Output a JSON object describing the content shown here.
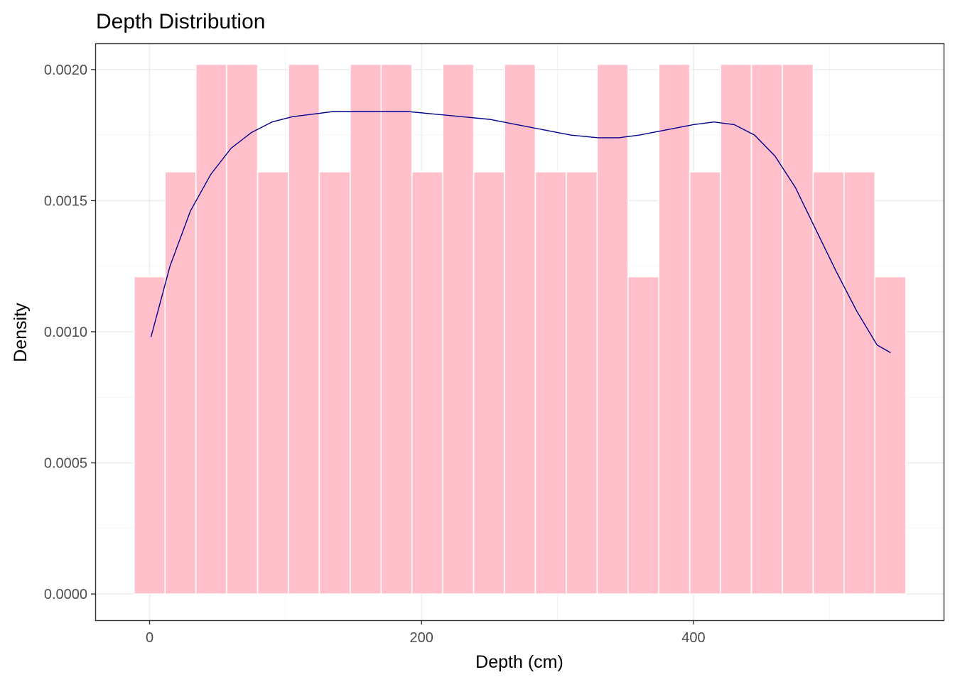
{
  "chart_data": {
    "type": "bar",
    "subtype": "histogram-with-density",
    "title": "Depth Distribution",
    "xlabel": "Depth (cm)",
    "ylabel": "Density",
    "xlim": [
      -40,
      584
    ],
    "ylim": [
      -0.0001,
      0.0021
    ],
    "x_ticks": [
      0,
      200,
      400
    ],
    "x_tick_labels": [
      "0",
      "200",
      "400"
    ],
    "x_minor_ticks": [
      100,
      300,
      500
    ],
    "y_ticks": [
      0,
      0.0005,
      0.001,
      0.0015,
      0.002
    ],
    "y_tick_labels": [
      "0.0000",
      "0.0005",
      "0.0010",
      "0.0015",
      "0.0020"
    ],
    "y_minor_ticks": [
      0.00025,
      0.00075,
      0.00125,
      0.00175
    ],
    "grid": true,
    "bin_width": 22.7,
    "bin_centers": [
      0,
      22.7,
      45.4,
      68.1,
      90.8,
      113.5,
      136.2,
      158.9,
      181.6,
      204.3,
      227,
      249.7,
      272.4,
      295.1,
      317.8,
      340.5,
      363.2,
      385.9,
      408.6,
      431.3,
      454,
      476.7,
      499.4,
      522.1,
      544.8
    ],
    "values": [
      0.00121,
      0.00161,
      0.00202,
      0.00202,
      0.00161,
      0.00202,
      0.00161,
      0.00202,
      0.00202,
      0.00161,
      0.00202,
      0.00161,
      0.00202,
      0.00161,
      0.00161,
      0.00202,
      0.00121,
      0.00202,
      0.00161,
      0.00202,
      0.00202,
      0.00202,
      0.00161,
      0.00161,
      0.00121
    ],
    "density_curve": {
      "x": [
        1,
        15,
        30,
        45,
        60,
        75,
        90,
        105,
        120,
        135,
        150,
        170,
        190,
        210,
        230,
        250,
        270,
        290,
        310,
        330,
        345,
        360,
        380,
        400,
        415,
        430,
        445,
        460,
        475,
        490,
        505,
        520,
        535,
        545
      ],
      "y": [
        0.00098,
        0.00125,
        0.00146,
        0.0016,
        0.0017,
        0.00176,
        0.0018,
        0.00182,
        0.00183,
        0.00184,
        0.00184,
        0.00184,
        0.00184,
        0.00183,
        0.00182,
        0.00181,
        0.00179,
        0.00177,
        0.00175,
        0.00174,
        0.00174,
        0.00175,
        0.00177,
        0.00179,
        0.0018,
        0.00179,
        0.00175,
        0.00167,
        0.00155,
        0.00139,
        0.00123,
        0.00108,
        0.00095,
        0.00092
      ]
    },
    "colors": {
      "bar_fill": "#ffc0cb",
      "bar_outline": "#ffffff",
      "density_line": "#00008b",
      "panel_border": "#333333",
      "grid": "#ebebeb"
    }
  }
}
